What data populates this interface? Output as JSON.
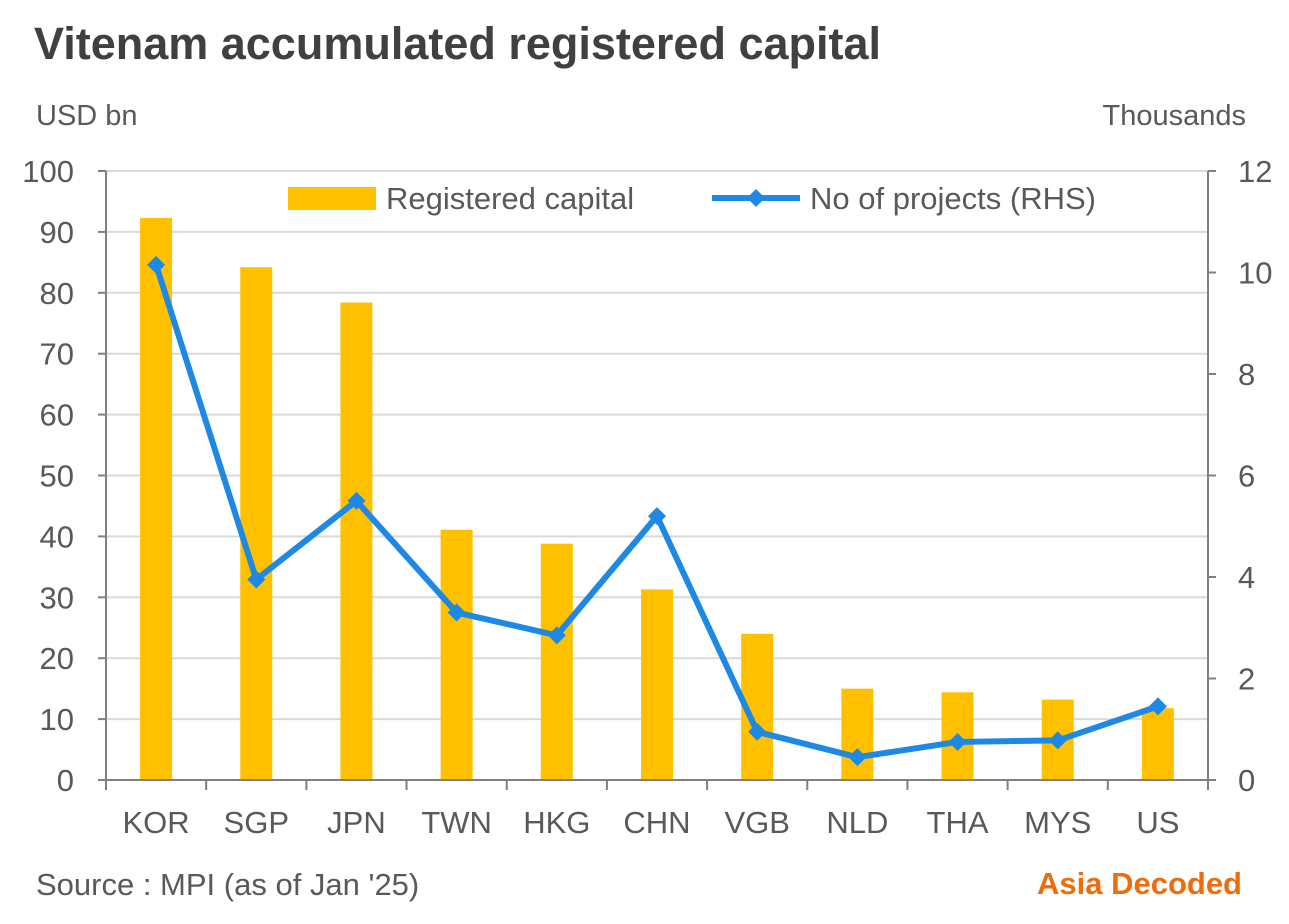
{
  "title": "Vitenam accumulated registered capital",
  "left_unit": "USD bn",
  "right_unit": "Thousands",
  "source": "Source : MPI (as of Jan '25)",
  "brand": "Asia Decoded",
  "colors": {
    "bar": "#FFC000",
    "line": "#1E88E5",
    "grid": "#D9D9D9",
    "axis": "#808080",
    "brand": "#ED6C0C"
  },
  "chart_data": {
    "type": "bar",
    "categories": [
      "KOR",
      "SGP",
      "JPN",
      "TWN",
      "HKG",
      "CHN",
      "VGB",
      "NLD",
      "THA",
      "MYS",
      "US"
    ],
    "series": [
      {
        "name": "Registered capital",
        "type": "bar",
        "axis": "left",
        "values": [
          92.3,
          84.2,
          78.4,
          41.1,
          38.8,
          31.3,
          24.0,
          15.0,
          14.4,
          13.2,
          11.8
        ]
      },
      {
        "name": "No of projects (RHS)",
        "type": "line",
        "marker": "diamond",
        "axis": "right",
        "values": [
          10.15,
          3.95,
          5.5,
          3.3,
          2.85,
          5.2,
          0.95,
          0.45,
          0.75,
          0.78,
          1.45
        ]
      }
    ],
    "ylim": [
      0,
      100
    ],
    "yticks": [
      "0",
      "10",
      "20",
      "30",
      "40",
      "50",
      "60",
      "70",
      "80",
      "90",
      "100"
    ],
    "y2lim": [
      0,
      12
    ],
    "y2ticks": [
      "0",
      "2",
      "4",
      "6",
      "8",
      "10",
      "12"
    ],
    "grid": true,
    "legend_position": "top"
  }
}
